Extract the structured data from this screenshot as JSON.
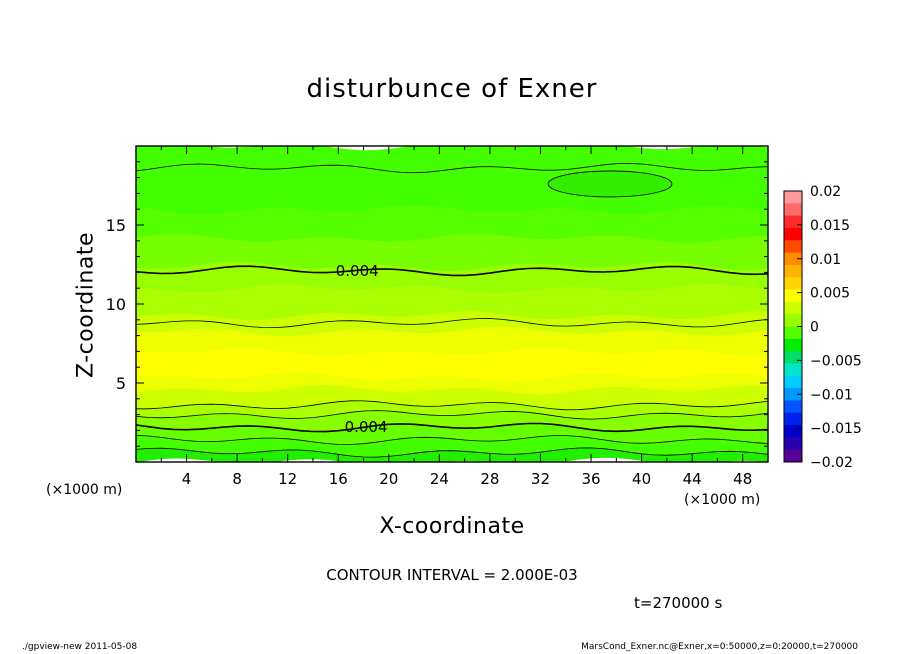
{
  "chart_data": {
    "type": "heatmap",
    "title": "disturbunce of Exner",
    "xlabel": "X-coordinate",
    "ylabel": "Z-coordinate",
    "x_unit": "(×1000 m)",
    "y_unit": "(×1000 m)",
    "xlim": [
      0,
      50
    ],
    "ylim": [
      0,
      20
    ],
    "x_ticks": [
      4,
      8,
      12,
      16,
      20,
      24,
      28,
      32,
      36,
      40,
      44,
      48
    ],
    "y_ticks": [
      5,
      10,
      15
    ],
    "contour_interval_text": "CONTOUR INTERVAL = 2.000E-03",
    "contour_labels": [
      {
        "text": "0.004",
        "x": 17.5,
        "z": 12.1
      },
      {
        "text": "0.004",
        "x": 18.2,
        "z": 2.2
      }
    ],
    "time_text": "t=270000 s",
    "colorbar": {
      "ticks": [
        "0.02",
        "0.015",
        "0.01",
        "0.005",
        "0",
        "−0.005",
        "−0.01",
        "−0.015",
        "−0.02"
      ],
      "values": [
        0.02,
        0.015,
        0.01,
        0.005,
        0,
        -0.005,
        -0.01,
        -0.015,
        -0.02
      ],
      "colors_top_to_bottom": [
        "#ff9a9a",
        "#ff6a6a",
        "#ff2a2a",
        "#ff0000",
        "#ff4a00",
        "#ff8c00",
        "#ffb400",
        "#ffd600",
        "#ffff00",
        "#ccff00",
        "#99ff00",
        "#55ff00",
        "#00ee00",
        "#00dd66",
        "#00e6c8",
        "#00ccff",
        "#0099ff",
        "#0055ff",
        "#0022ee",
        "#0000cc",
        "#2a00aa",
        "#5a0099"
      ]
    },
    "field_layers": [
      {
        "z": [
          0.0,
          0.6
        ],
        "value": 0.0,
        "color": "#22ee00"
      },
      {
        "z": [
          0.6,
          1.4
        ],
        "value": 0.001,
        "color": "#44ff00"
      },
      {
        "z": [
          1.4,
          2.2
        ],
        "value": 0.003,
        "color": "#66ff00"
      },
      {
        "z": [
          2.2,
          3.0
        ],
        "value": 0.004,
        "color": "#88ff00"
      },
      {
        "z": [
          3.0,
          3.6
        ],
        "value": 0.005,
        "color": "#aaff00"
      },
      {
        "z": [
          3.6,
          4.6
        ],
        "value": 0.006,
        "color": "#ccff00"
      },
      {
        "z": [
          4.6,
          5.4
        ],
        "value": 0.0065,
        "color": "#eeff00"
      },
      {
        "z": [
          5.4,
          7.0
        ],
        "value": 0.007,
        "color": "#ffff00"
      },
      {
        "z": [
          7.0,
          8.3
        ],
        "value": 0.0065,
        "color": "#eeff00"
      },
      {
        "z": [
          8.3,
          9.3
        ],
        "value": 0.006,
        "color": "#ccff00"
      },
      {
        "z": [
          9.3,
          11.0
        ],
        "value": 0.005,
        "color": "#aaff00"
      },
      {
        "z": [
          11.0,
          12.4
        ],
        "value": 0.0045,
        "color": "#99ff00"
      },
      {
        "z": [
          12.4,
          14.2
        ],
        "value": 0.003,
        "color": "#77ff00"
      },
      {
        "z": [
          14.2,
          16.0
        ],
        "value": 0.002,
        "color": "#55ff00"
      },
      {
        "z": [
          16.0,
          20.0
        ],
        "value": 0.001,
        "color": "#44ff00"
      }
    ],
    "grid": false
  },
  "footer": {
    "left": "./gpview-new   2011-05-08",
    "right": "MarsCond_Exner.nc@Exner,x=0:50000,z=0:20000,t=270000"
  }
}
